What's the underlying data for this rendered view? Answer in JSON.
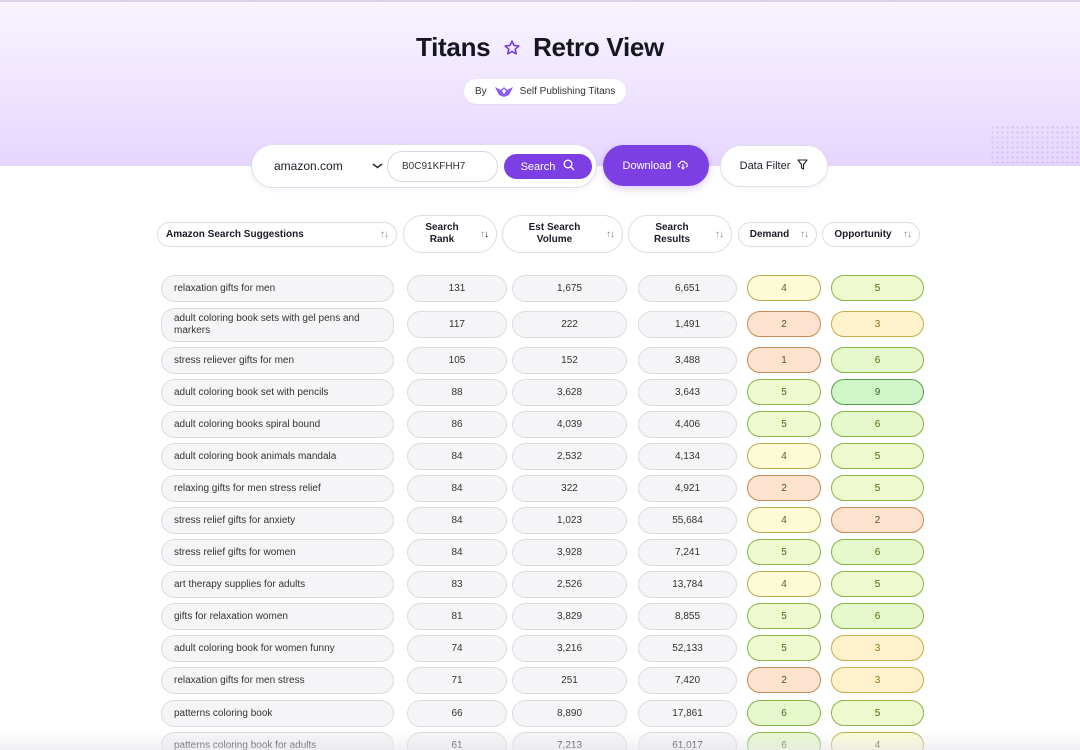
{
  "header": {
    "title_left": "Titans",
    "title_right": "Retro View",
    "by_label": "By",
    "brand": "Self Publishing Titans"
  },
  "search": {
    "domain": "amazon.com",
    "asin_value": "B0C91KFHH7",
    "search_label": "Search",
    "download_label": "Download",
    "filter_label": "Data Filter"
  },
  "columns": {
    "keyword": "Amazon Search Suggestions",
    "rank_1": "Search",
    "rank_2": "Rank",
    "volume_1": "Est Search",
    "volume_2": "Volume",
    "results_1": "Search",
    "results_2": "Results",
    "demand": "Demand",
    "opportunity": "Opportunity"
  },
  "score_colors": {
    "1": {
      "bg": "#fde3cf",
      "border": "#c98a52",
      "text": "#6b4a2c"
    },
    "2": {
      "bg": "#fde3cf",
      "border": "#c98a52",
      "text": "#6b4a2c"
    },
    "3": {
      "bg": "#fff1cc",
      "border": "#c4ae4a",
      "text": "#8a7514"
    },
    "4": {
      "bg": "#fcfbd6",
      "border": "#b6ae4f",
      "text": "#5a5a2c"
    },
    "5": {
      "bg": "#eef9cf",
      "border": "#8fb04a",
      "text": "#4d6a12"
    },
    "6": {
      "bg": "#e8f8cd",
      "border": "#86b245",
      "text": "#4a6d12"
    },
    "9": {
      "bg": "#cff5c8",
      "border": "#55a04a",
      "text": "#2f6d22"
    }
  },
  "rows": [
    {
      "keyword": "relaxation gifts for men",
      "rank": "131",
      "volume": "1,675",
      "results": "6,651",
      "demand": "4",
      "opportunity": "5"
    },
    {
      "keyword": "adult coloring book sets with gel pens and markers",
      "rank": "117",
      "volume": "222",
      "results": "1,491",
      "demand": "2",
      "opportunity": "3"
    },
    {
      "keyword": "stress reliever gifts for men",
      "rank": "105",
      "volume": "152",
      "results": "3,488",
      "demand": "1",
      "opportunity": "6"
    },
    {
      "keyword": "adult coloring book set with pencils",
      "rank": "88",
      "volume": "3,628",
      "results": "3,643",
      "demand": "5",
      "opportunity": "9"
    },
    {
      "keyword": "adult coloring books spiral bound",
      "rank": "86",
      "volume": "4,039",
      "results": "4,406",
      "demand": "5",
      "opportunity": "6"
    },
    {
      "keyword": "adult coloring book animals mandala",
      "rank": "84",
      "volume": "2,532",
      "results": "4,134",
      "demand": "4",
      "opportunity": "5"
    },
    {
      "keyword": "relaxing gifts for men stress relief",
      "rank": "84",
      "volume": "322",
      "results": "4,921",
      "demand": "2",
      "opportunity": "5"
    },
    {
      "keyword": "stress relief gifts for anxiety",
      "rank": "84",
      "volume": "1,023",
      "results": "55,684",
      "demand": "4",
      "opportunity": "2"
    },
    {
      "keyword": "stress relief gifts for women",
      "rank": "84",
      "volume": "3,928",
      "results": "7,241",
      "demand": "5",
      "opportunity": "6"
    },
    {
      "keyword": "art therapy supplies for adults",
      "rank": "83",
      "volume": "2,526",
      "results": "13,784",
      "demand": "4",
      "opportunity": "5"
    },
    {
      "keyword": "gifts for relaxation women",
      "rank": "81",
      "volume": "3,829",
      "results": "8,855",
      "demand": "5",
      "opportunity": "6"
    },
    {
      "keyword": "adult coloring book for women funny",
      "rank": "74",
      "volume": "3,216",
      "results": "52,133",
      "demand": "5",
      "opportunity": "3"
    },
    {
      "keyword": "relaxation gifts for men stress",
      "rank": "71",
      "volume": "251",
      "results": "7,420",
      "demand": "2",
      "opportunity": "3"
    },
    {
      "keyword": "patterns coloring book",
      "rank": "66",
      "volume": "8,890",
      "results": "17,861",
      "demand": "6",
      "opportunity": "5"
    },
    {
      "keyword": "patterns coloring book for adults",
      "rank": "61",
      "volume": "7,213",
      "results": "61,017",
      "demand": "6",
      "opportunity": "4"
    }
  ]
}
